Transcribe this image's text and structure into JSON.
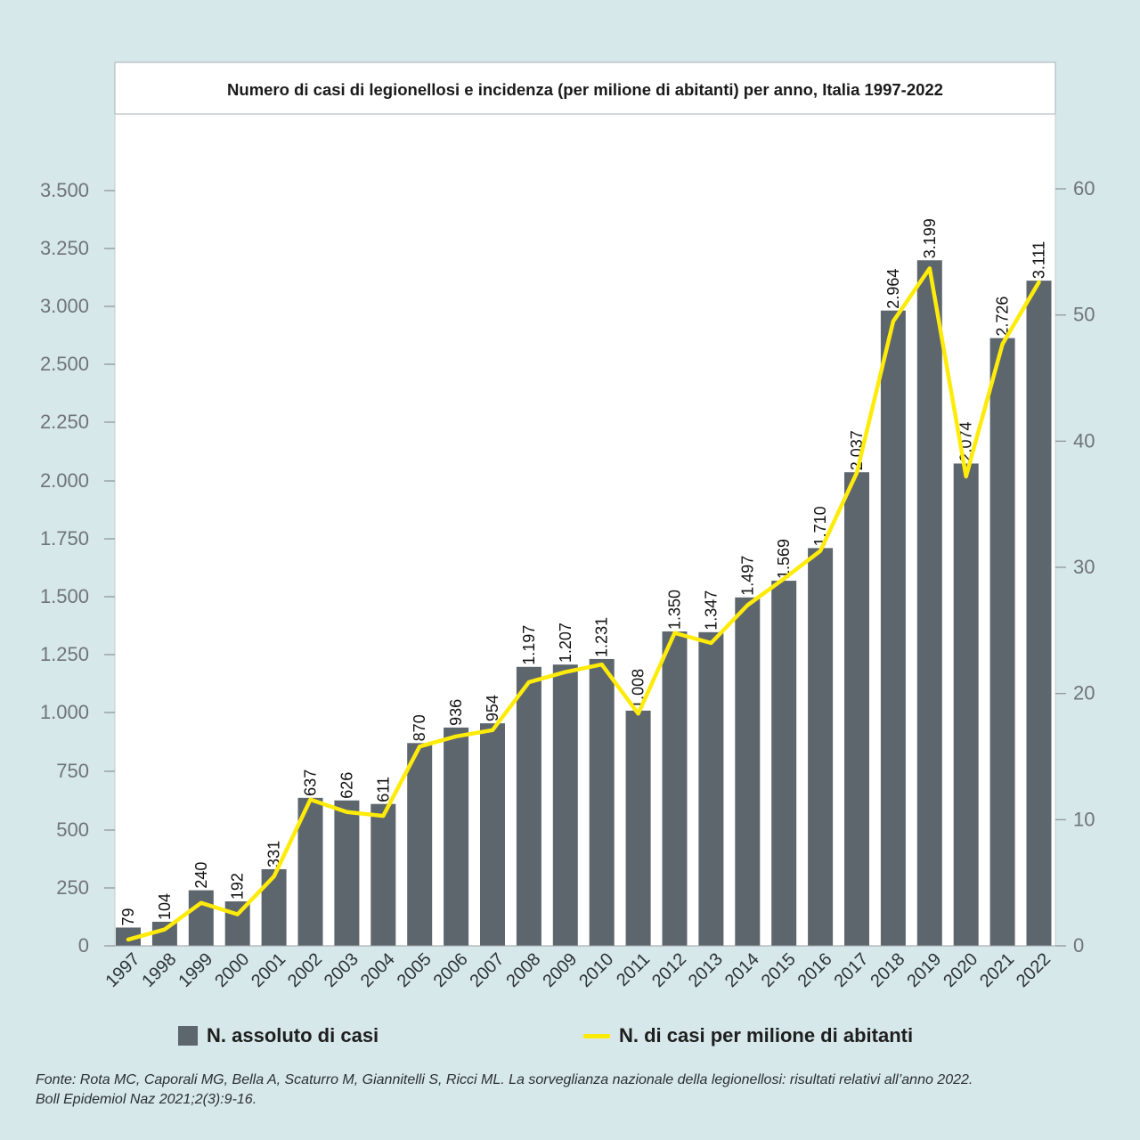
{
  "chart_data": {
    "type": "bar",
    "title": "Numero di casi di legionellosi e incidenza (per milione di abitanti) per anno, Italia 1997-2022",
    "categories": [
      "1997",
      "1998",
      "1999",
      "2000",
      "2001",
      "2002",
      "2003",
      "2004",
      "2005",
      "2006",
      "2007",
      "2008",
      "2009",
      "2010",
      "2011",
      "2012",
      "2013",
      "2014",
      "2015",
      "2016",
      "2017",
      "2018",
      "2019",
      "2020",
      "2021",
      "2022"
    ],
    "series": [
      {
        "name": "N. assoluto di casi",
        "type": "bar",
        "axis": "left",
        "color": "#5d666d",
        "values": [
          79,
          104,
          240,
          192,
          331,
          637,
          626,
          611,
          870,
          936,
          954,
          1197,
          1207,
          1231,
          1008,
          1350,
          1347,
          1497,
          1569,
          1710,
          2037,
          2964,
          3199,
          2074,
          2726,
          3111
        ],
        "labels": [
          "79",
          "104",
          "240",
          "192",
          "331",
          "637",
          "626",
          "611",
          "870",
          "936",
          "954",
          "1.197",
          "1.207",
          "1.231",
          "1.008",
          "1.350",
          "1.347",
          "1.497",
          "1.569",
          "1.710",
          "2.037",
          "2.964",
          "3.199",
          "2.074",
          "2.726",
          "3.111"
        ]
      },
      {
        "name": "N. di casi per milione di abitanti",
        "type": "line",
        "axis": "right",
        "color": "#ffeb0a",
        "values": [
          0.5,
          1.3,
          3.4,
          2.5,
          5.5,
          11.6,
          10.6,
          10.3,
          15.8,
          16.6,
          17.1,
          20.9,
          21.7,
          22.3,
          18.4,
          24.8,
          24.0,
          27.0,
          29.1,
          31.3,
          37.5,
          49.5,
          53.7,
          37.2,
          47.7,
          52.6
        ]
      }
    ],
    "y_left": {
      "ticks": [
        0,
        250,
        500,
        750,
        1000,
        1250,
        1500,
        1750,
        2000,
        2250,
        2500,
        3000,
        3250,
        3500
      ],
      "tick_labels": [
        "0",
        "250",
        "500",
        "750",
        "1.000",
        "1.250",
        "1.500",
        "1.750",
        "2.000",
        "2.250",
        "2.500",
        "3.000",
        "3.250",
        "3.500"
      ]
    },
    "y_right": {
      "ticks": [
        0,
        10,
        20,
        30,
        40,
        50,
        60
      ],
      "tick_labels": [
        "0",
        "10",
        "20",
        "30",
        "40",
        "50",
        "60"
      ],
      "range": [
        0,
        60
      ]
    },
    "legend_position": "bottom",
    "grid": false
  },
  "legend": {
    "bar_label": "N. assoluto di casi",
    "line_label": "N. di casi per milione di abitanti"
  },
  "source": {
    "line1": "Fonte: Rota MC, Caporali MG, Bella A, Scaturro M, Giannitelli S, Ricci ML. La sorveglianza nazionale della legionellosi: risultati relativi all’anno 2022.",
    "line2": "Boll Epidemiol Naz 2021;2(3):9-16."
  }
}
